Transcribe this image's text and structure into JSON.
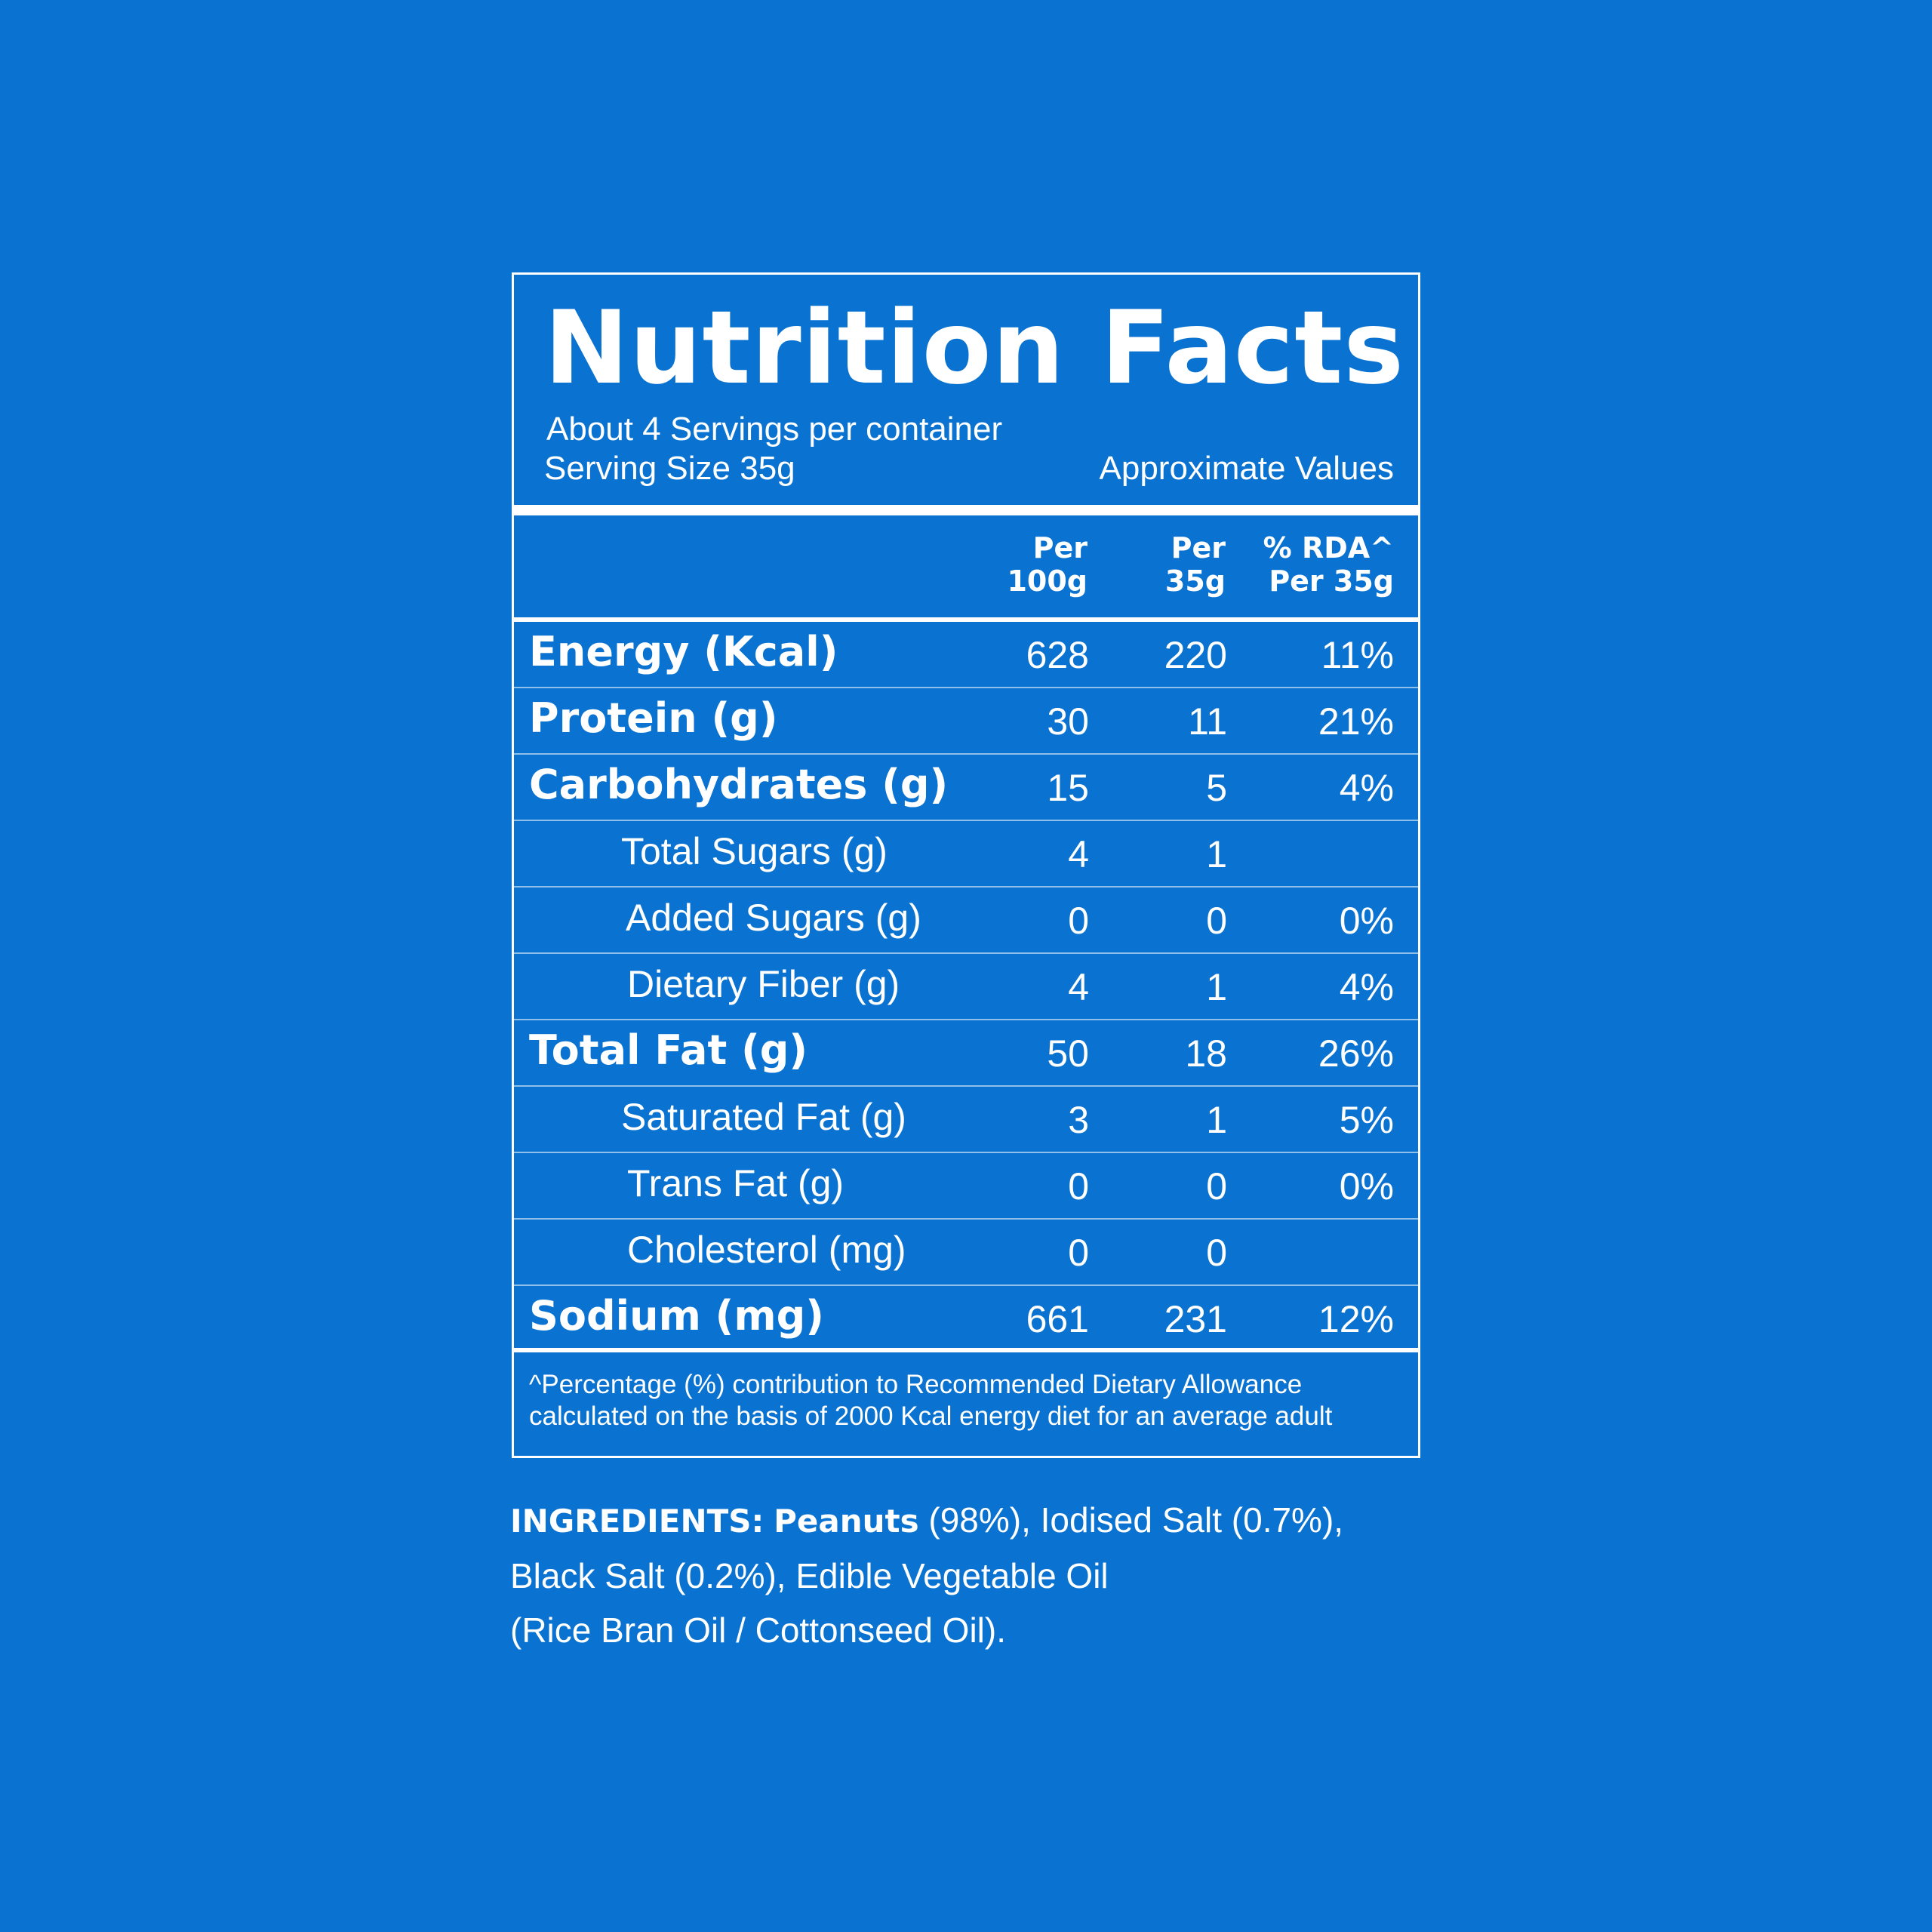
{
  "colors": {
    "background": "#0a72d0",
    "foreground": "#ffffff"
  },
  "label": {
    "title": "Nutrition Facts",
    "servings": "About 4 Servings per container",
    "serving_size": "Serving Size 35g",
    "approx": "Approximate Values",
    "headers": {
      "per100_line1": "Per",
      "per100_line2": "100g",
      "per35_line1": "Per",
      "per35_line2": "35g",
      "rda_line1": "% RDA^",
      "rda_line2": "Per 35g"
    },
    "rows": [
      {
        "name": "Energy (Kcal)",
        "per100": "628",
        "per35": "220",
        "rda": "11%"
      },
      {
        "name": "Protein (g)",
        "per100": "30",
        "per35": "11",
        "rda": "21%"
      },
      {
        "name": "Carbohydrates (g)",
        "per100": "15",
        "per35": "5",
        "rda": "4%"
      },
      {
        "name": "Total Sugars (g)",
        "per100": "4",
        "per35": "1",
        "rda": ""
      },
      {
        "name": "Added Sugars (g)",
        "per100": "0",
        "per35": "0",
        "rda": "0%"
      },
      {
        "name": "Dietary Fiber (g)",
        "per100": "4",
        "per35": "1",
        "rda": "4%"
      },
      {
        "name": "Total Fat (g)",
        "per100": "50",
        "per35": "18",
        "rda": "26%"
      },
      {
        "name": "Saturated Fat (g)",
        "per100": "3",
        "per35": "1",
        "rda": "5%"
      },
      {
        "name": "Trans Fat (g)",
        "per100": "0",
        "per35": "0",
        "rda": "0%"
      },
      {
        "name": "Cholesterol (mg)",
        "per100": "0",
        "per35": "0",
        "rda": ""
      },
      {
        "name": "Sodium (mg)",
        "per100": "661",
        "per35": "231",
        "rda": "12%"
      }
    ],
    "footnote_line1": "^Percentage (%) contribution to Recommended Dietary Allowance",
    "footnote_line2": "calculated on the basis of 2000 Kcal energy diet for an average adult"
  },
  "ingredients": {
    "heading": "INGREDIENTS:",
    "item1_name": "Peanuts",
    "item1_rest": " (98%), Iodised Salt (0.7%),",
    "line2": "Black Salt (0.2%), Edible Vegetable Oil",
    "line3": "(Rice Bran Oil / Cottonseed Oil)."
  }
}
